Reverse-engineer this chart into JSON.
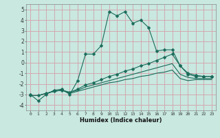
{
  "xlabel": "Humidex (Indice chaleur)",
  "bg_color": "#c8e8e0",
  "grid_color": "#d4a0a8",
  "line_color": "#1a6b5a",
  "xlim": [
    -0.5,
    23.5
  ],
  "ylim": [
    -4.5,
    5.5
  ],
  "yticks": [
    -4,
    -3,
    -2,
    -1,
    0,
    1,
    2,
    3,
    4,
    5
  ],
  "xticks": [
    0,
    1,
    2,
    3,
    4,
    5,
    6,
    7,
    8,
    9,
    10,
    11,
    12,
    13,
    14,
    15,
    16,
    17,
    18,
    19,
    20,
    21,
    22,
    23
  ],
  "line1_x": [
    0,
    1,
    2,
    3,
    4,
    5,
    6,
    7,
    8,
    9,
    10,
    11,
    12,
    13,
    14,
    15,
    16,
    17,
    18,
    19,
    20,
    21,
    22,
    23
  ],
  "line1_y": [
    -3.0,
    -3.6,
    -3.0,
    -2.6,
    -2.5,
    -3.0,
    -1.7,
    0.8,
    0.8,
    1.6,
    4.8,
    4.4,
    4.8,
    3.7,
    4.0,
    3.3,
    1.1,
    1.2,
    1.2,
    -0.3,
    -1.1,
    -1.3,
    -1.3,
    -1.3
  ],
  "line2_x": [
    0,
    1,
    2,
    3,
    4,
    5,
    6,
    7,
    8,
    9,
    10,
    11,
    12,
    13,
    14,
    15,
    16,
    17,
    18,
    19,
    20,
    21,
    22,
    23
  ],
  "line2_y": [
    -3.1,
    -3.1,
    -2.9,
    -2.7,
    -2.6,
    -2.8,
    -2.5,
    -2.1,
    -1.9,
    -1.6,
    -1.3,
    -1.1,
    -0.8,
    -0.6,
    -0.3,
    -0.1,
    0.2,
    0.5,
    0.8,
    -0.3,
    -1.0,
    -1.2,
    -1.3,
    -1.3
  ],
  "line3_x": [
    0,
    1,
    2,
    3,
    4,
    5,
    6,
    7,
    8,
    9,
    10,
    11,
    12,
    13,
    14,
    15,
    16,
    17,
    18,
    19,
    20,
    21,
    22,
    23
  ],
  "line3_y": [
    -3.1,
    -3.1,
    -2.9,
    -2.7,
    -2.6,
    -2.8,
    -2.6,
    -2.3,
    -2.1,
    -1.9,
    -1.7,
    -1.5,
    -1.3,
    -1.1,
    -0.9,
    -0.7,
    -0.5,
    -0.3,
    -0.1,
    -1.1,
    -1.4,
    -1.5,
    -1.5,
    -1.5
  ],
  "line4_x": [
    0,
    1,
    2,
    3,
    4,
    5,
    6,
    7,
    8,
    9,
    10,
    11,
    12,
    13,
    14,
    15,
    16,
    17,
    18,
    19,
    20,
    21,
    22,
    23
  ],
  "line4_y": [
    -3.1,
    -3.1,
    -2.9,
    -2.7,
    -2.6,
    -2.9,
    -2.7,
    -2.5,
    -2.3,
    -2.1,
    -1.9,
    -1.8,
    -1.6,
    -1.5,
    -1.3,
    -1.2,
    -1.0,
    -0.9,
    -0.7,
    -1.5,
    -1.7,
    -1.6,
    -1.6,
    -1.6
  ]
}
